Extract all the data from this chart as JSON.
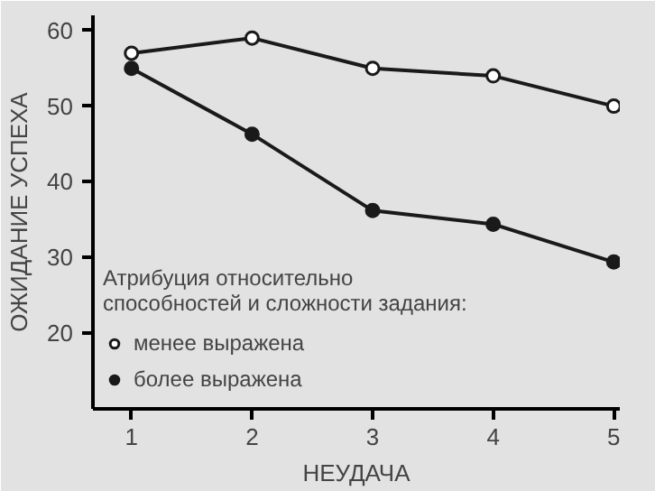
{
  "chart_data": {
    "type": "line",
    "xlabel": "НЕУДАЧА",
    "ylabel": "ОЖИДАНИЕ УСПЕХА",
    "x": [
      1,
      2,
      3,
      4,
      5
    ],
    "xlim": [
      0.68,
      5.05
    ],
    "xticks": [
      1,
      2,
      3,
      4,
      5
    ],
    "ylim": [
      10,
      62
    ],
    "yticks": [
      20,
      30,
      40,
      50,
      60
    ],
    "legend_title": "Атрибуция относительно\nспособностей и сложности задания:",
    "series": [
      {
        "name": "менее выражена",
        "color": "#1a1a1a",
        "colors": [
          "#ffffff",
          "#ffffff",
          "#ffffff",
          "#ffffff",
          "#ffffff"
        ],
        "values": [
          57,
          59,
          55,
          54,
          50
        ]
      },
      {
        "name": "более выражена",
        "color": "#1a1a1a",
        "values": [
          55,
          46.3,
          36.2,
          34.4,
          29.4
        ]
      }
    ],
    "marker": "circle",
    "line_style": "solid",
    "legend": "bottom left"
  }
}
